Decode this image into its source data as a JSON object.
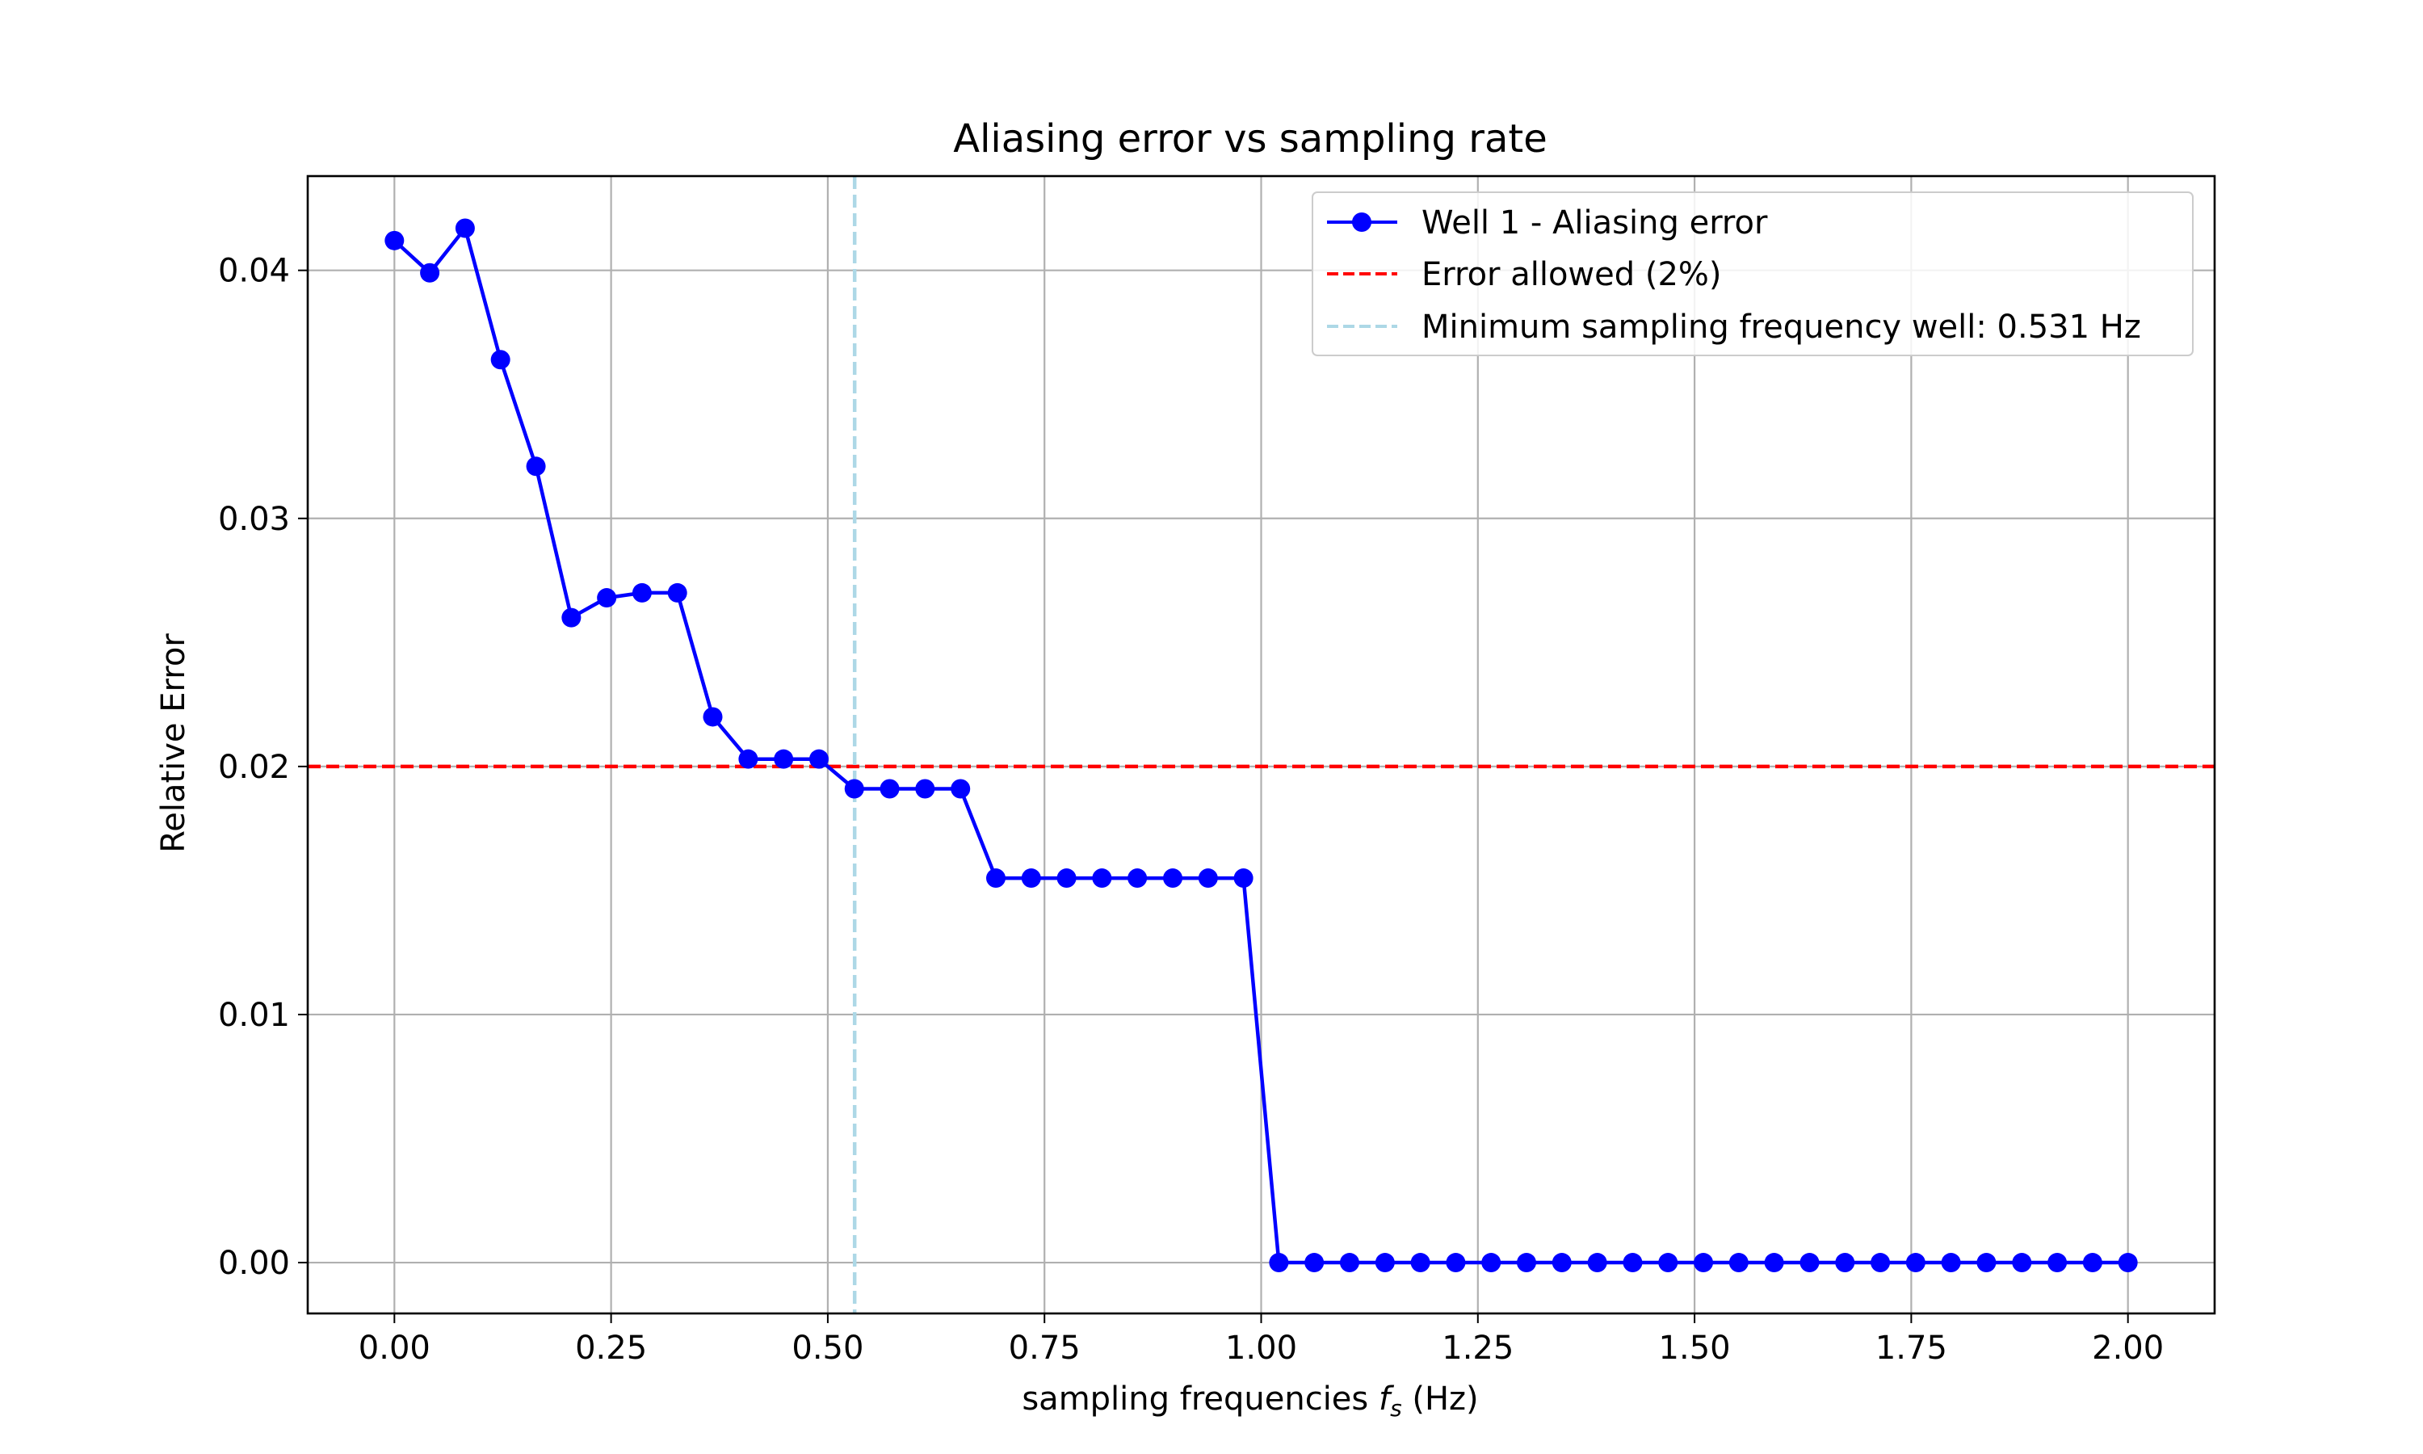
{
  "chart_data": {
    "type": "line",
    "title": "Aliasing error vs sampling rate",
    "xlabel": {
      "prefix": "sampling frequencies ",
      "symbol": "f",
      "subscript": "s",
      "suffix": " (Hz)"
    },
    "ylabel": "Relative Error",
    "xlim": [
      -0.1,
      2.1
    ],
    "ylim": [
      -0.00205,
      0.0438
    ],
    "x_ticks": [
      0.0,
      0.25,
      0.5,
      0.75,
      1.0,
      1.25,
      1.5,
      1.75,
      2.0
    ],
    "x_tick_labels": [
      "0.00",
      "0.25",
      "0.50",
      "0.75",
      "1.00",
      "1.25",
      "1.50",
      "1.75",
      "2.00"
    ],
    "y_ticks": [
      0.0,
      0.01,
      0.02,
      0.03,
      0.04
    ],
    "y_tick_labels": [
      "0.00",
      "0.01",
      "0.02",
      "0.03",
      "0.04"
    ],
    "grid": true,
    "legend_position": "top-right",
    "series": [
      {
        "name": "Well 1 - Aliasing error",
        "style": "line-marker",
        "color": "#0000ff",
        "x": [
          0.0,
          0.0408,
          0.0816,
          0.1224,
          0.1633,
          0.2041,
          0.2449,
          0.2857,
          0.3265,
          0.3673,
          0.4082,
          0.449,
          0.4898,
          0.5306,
          0.5714,
          0.6122,
          0.6531,
          0.6939,
          0.7347,
          0.7755,
          0.8163,
          0.8571,
          0.898,
          0.9388,
          0.9796,
          1.0204,
          1.0612,
          1.102,
          1.1429,
          1.1837,
          1.2245,
          1.2653,
          1.3061,
          1.3469,
          1.3878,
          1.4286,
          1.4694,
          1.5102,
          1.551,
          1.5918,
          1.6327,
          1.6735,
          1.7143,
          1.7551,
          1.7959,
          1.8367,
          1.8776,
          1.9184,
          1.9592,
          2.0
        ],
        "y": [
          0.0412,
          0.0399,
          0.0417,
          0.0364,
          0.0321,
          0.026,
          0.0268,
          0.027,
          0.027,
          0.022,
          0.0203,
          0.0203,
          0.0203,
          0.0191,
          0.0191,
          0.0191,
          0.0191,
          0.0155,
          0.0155,
          0.0155,
          0.0155,
          0.0155,
          0.0155,
          0.0155,
          0.0155,
          0.0,
          0.0,
          0.0,
          0.0,
          0.0,
          0.0,
          0.0,
          0.0,
          0.0,
          0.0,
          0.0,
          0.0,
          0.0,
          0.0,
          0.0,
          0.0,
          0.0,
          0.0,
          0.0,
          0.0,
          0.0,
          0.0,
          0.0,
          0.0,
          0.0
        ]
      }
    ],
    "reference_lines": [
      {
        "name": "Error allowed (2%)",
        "orientation": "horizontal",
        "value": 0.02,
        "color": "#ff0000",
        "dash": "dashed"
      },
      {
        "name": "Minimum sampling frequency well: 0.531 Hz",
        "orientation": "vertical",
        "value": 0.531,
        "color": "#add8e6",
        "dash": "dashed"
      }
    ]
  }
}
